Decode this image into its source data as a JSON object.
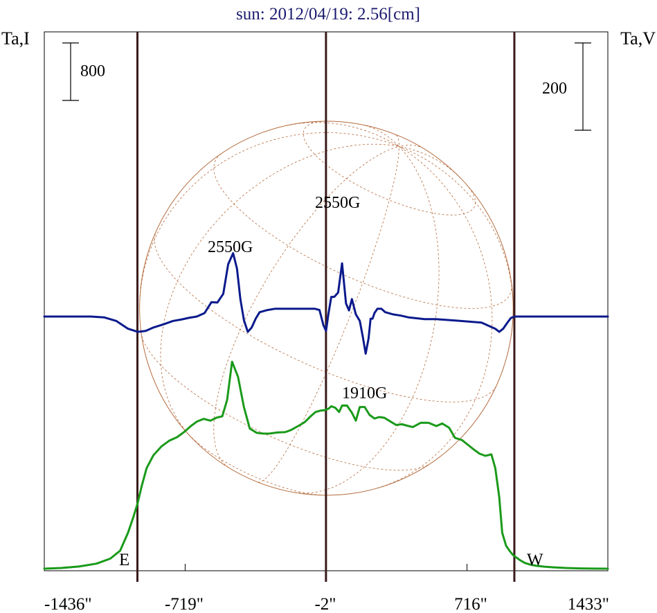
{
  "title": "sun: 2012/04/19: 2.56[cm]",
  "left_axis_label": "Ta,I",
  "right_axis_label": "Ta,V",
  "scale_left_label": "800",
  "scale_right_label": "200",
  "east_label": "E",
  "west_label": "W",
  "colors": {
    "frame": "#000000",
    "intensity": "#1a9a1a",
    "polarization": "#0b1a8c",
    "limb_lines": "#3a1a1a",
    "disk": "#b46a3c",
    "title": "#1a1a6e"
  },
  "chart_data": {
    "type": "line",
    "title": "sun: 2012/04/19: 2.56[cm]",
    "x_unit": "arcsec",
    "xlim": [
      -1436,
      1433
    ],
    "x_tick_labels": [
      "-1436\"",
      "-719\"",
      "-2\"",
      "716\"",
      "1433\""
    ],
    "x_ticks": [
      -1436,
      -719,
      -2,
      716,
      1433
    ],
    "limb_markers_x": [
      -962,
      -2,
      957
    ],
    "disk_radius_arcsec": 951,
    "scale_bars": [
      {
        "axis": "Ta,I",
        "label": "800",
        "value": 800
      },
      {
        "axis": "Ta,V",
        "label": "200",
        "value": 200
      }
    ],
    "annotations": [
      {
        "text": "2550G",
        "x": -454,
        "series": "Ta,V"
      },
      {
        "text": "2550G",
        "x": 86,
        "series": "Ta,V"
      },
      {
        "text": "1910G",
        "x": 227,
        "series": "Ta,V"
      },
      {
        "text": "E",
        "x": -1010
      },
      {
        "text": "W",
        "x": 1067
      }
    ],
    "series": [
      {
        "axis": "Ta,I",
        "x": [
          -1436,
          -1350,
          -1260,
          -1170,
          -1100,
          -1050,
          -1010,
          -985,
          -962,
          -940,
          -915,
          -880,
          -840,
          -800,
          -760,
          -725,
          -690,
          -660,
          -625,
          -590,
          -560,
          -530,
          -505,
          -480,
          -450,
          -420,
          -390,
          -355,
          -320,
          -290,
          -250,
          -210,
          -180,
          -140,
          -110,
          -80,
          -55,
          -30,
          -10,
          10,
          25,
          45,
          65,
          80,
          105,
          130,
          150,
          170,
          195,
          220,
          245,
          270,
          295,
          325,
          355,
          385,
          410,
          440,
          480,
          520,
          560,
          590,
          625,
          655,
          690,
          720,
          750,
          780,
          810,
          840,
          860,
          880,
          895,
          915,
          935,
          950,
          965,
          985,
          1010,
          1040,
          1070,
          1110,
          1160,
          1220,
          1290,
          1360,
          1433
        ],
        "y": [
          0,
          10,
          30,
          70,
          140,
          250,
          500,
          700,
          900,
          1150,
          1400,
          1580,
          1700,
          1780,
          1830,
          1900,
          1985,
          2045,
          2085,
          2060,
          2100,
          2120,
          2350,
          2880,
          2670,
          2250,
          1950,
          1890,
          1880,
          1880,
          1895,
          1900,
          1930,
          1990,
          2040,
          2120,
          2180,
          2200,
          2205,
          2225,
          2260,
          2240,
          2180,
          2270,
          2270,
          2170,
          2060,
          2250,
          2250,
          2140,
          2090,
          2110,
          2100,
          2050,
          2000,
          2010,
          1990,
          1970,
          2030,
          2030,
          1985,
          2020,
          1960,
          1820,
          1790,
          1725,
          1660,
          1600,
          1570,
          1590,
          1400,
          1000,
          500,
          320,
          240,
          190,
          160,
          120,
          80,
          55,
          40,
          28,
          18,
          10,
          4,
          1,
          0
        ]
      },
      {
        "axis": "Ta,V",
        "x": [
          -1436,
          -1400,
          -1300,
          -1200,
          -1130,
          -1070,
          -1010,
          -960,
          -920,
          -880,
          -830,
          -780,
          -740,
          -700,
          -660,
          -620,
          -585,
          -555,
          -525,
          -500,
          -475,
          -455,
          -438,
          -420,
          -400,
          -380,
          -360,
          -340,
          -300,
          -260,
          -220,
          -180,
          -140,
          -100,
          -60,
          -35,
          -15,
          -2,
          10,
          25,
          40,
          60,
          80,
          100,
          115,
          130,
          150,
          170,
          185,
          200,
          215,
          225,
          235,
          245,
          260,
          280,
          300,
          340,
          380,
          420,
          460,
          500,
          560,
          620,
          680,
          740,
          790,
          830,
          860,
          880,
          900,
          920,
          940,
          960,
          990,
          1030,
          1080,
          1150,
          1250,
          1350,
          1433
        ],
        "y": [
          0,
          0,
          0,
          0,
          -2,
          -10,
          -28,
          -35,
          -33,
          -25,
          -18,
          -10,
          -7,
          -3,
          0,
          8,
          33,
          32,
          52,
          120,
          145,
          110,
          40,
          -8,
          -35,
          -25,
          -5,
          10,
          15,
          18,
          18,
          18,
          18,
          18,
          18,
          15,
          -20,
          -33,
          5,
          45,
          45,
          55,
          122,
          30,
          14,
          40,
          5,
          -10,
          -45,
          -85,
          -50,
          -5,
          -5,
          8,
          18,
          18,
          10,
          5,
          2,
          -2,
          -4,
          -6,
          -6,
          -8,
          -10,
          -12,
          -14,
          -22,
          -28,
          -35,
          -28,
          -15,
          -3,
          0,
          0,
          0,
          0,
          0,
          0,
          0,
          0
        ]
      }
    ]
  }
}
